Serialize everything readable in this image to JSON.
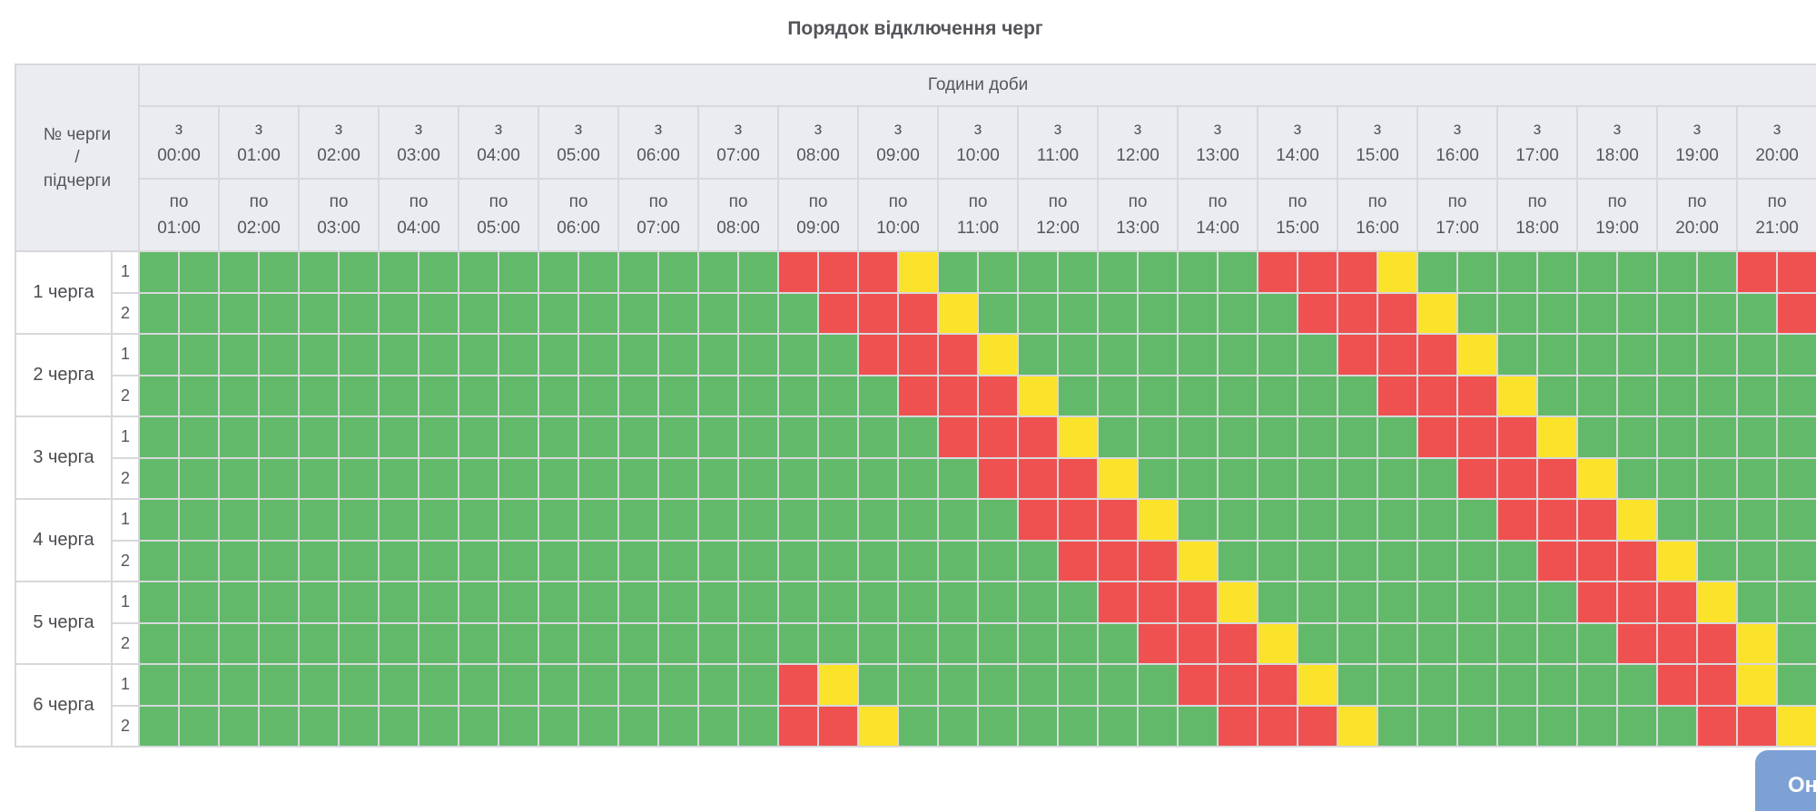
{
  "title": "Порядок відключення черг",
  "colors": {
    "green": "#62b96a",
    "red": "#ef5150",
    "yellow": "#fce32b",
    "header_bg": "#ebecf0",
    "border": "#d7d8db",
    "button_blue": "rgba(97,140,204,0.82)"
  },
  "table": {
    "corner_header_lines": [
      "№ черги",
      "/",
      "підчерги"
    ],
    "hours_header": "Години доби",
    "from_prefix": "з",
    "to_prefix": "по",
    "columns": [
      {
        "from": "00:00",
        "to": "01:00"
      },
      {
        "from": "01:00",
        "to": "02:00"
      },
      {
        "from": "02:00",
        "to": "03:00"
      },
      {
        "from": "03:00",
        "to": "04:00"
      },
      {
        "from": "04:00",
        "to": "05:00"
      },
      {
        "from": "05:00",
        "to": "06:00"
      },
      {
        "from": "06:00",
        "to": "07:00"
      },
      {
        "from": "07:00",
        "to": "08:00"
      },
      {
        "from": "08:00",
        "to": "09:00"
      },
      {
        "from": "09:00",
        "to": "10:00"
      },
      {
        "from": "10:00",
        "to": "11:00"
      },
      {
        "from": "11:00",
        "to": "12:00"
      },
      {
        "from": "12:00",
        "to": "13:00"
      },
      {
        "from": "13:00",
        "to": "14:00"
      },
      {
        "from": "14:00",
        "to": "15:00"
      },
      {
        "from": "15:00",
        "to": "16:00"
      },
      {
        "from": "16:00",
        "to": "17:00"
      },
      {
        "from": "17:00",
        "to": "18:00"
      },
      {
        "from": "18:00",
        "to": "19:00"
      },
      {
        "from": "19:00",
        "to": "20:00"
      },
      {
        "from": "20:00",
        "to": "21:00"
      }
    ]
  },
  "schedule": {
    "slot_minutes": 30,
    "cell_legend": {
      "g": "power on (green)",
      "r": "outage (red)",
      "y": "possible outage (yellow)"
    },
    "rows": [
      {
        "queue": "1 черга",
        "sub": "1",
        "cells": "ggggggggggggggggrrryggggggggrrryggggggggrr"
      },
      {
        "queue": "1 черга",
        "sub": "2",
        "cells": "gggggggggggggggggrrryggggggggrrryggggggggr"
      },
      {
        "queue": "2 черга",
        "sub": "1",
        "cells": "ggggggggggggggggggrrryggggggggrrrygggggggg"
      },
      {
        "queue": "2 черга",
        "sub": "2",
        "cells": "gggggggggggggggggggrrryggggggggrrryggggggg"
      },
      {
        "queue": "3 черга",
        "sub": "1",
        "cells": "ggggggggggggggggggggrrryggggggggrrrygggggg"
      },
      {
        "queue": "3 черга",
        "sub": "2",
        "cells": "gggggggggggggggggggggrrryggggggggrrryggggg"
      },
      {
        "queue": "4 черга",
        "sub": "1",
        "cells": "ggggggggggggggggggggggrrryggggggggrrrygggg"
      },
      {
        "queue": "4 черга",
        "sub": "2",
        "cells": "gggggggggggggggggggggggrrryggggggggrrryggg"
      },
      {
        "queue": "5 черга",
        "sub": "1",
        "cells": "ggggggggggggggggggggggggrrryggggggggrrrygg"
      },
      {
        "queue": "5 черга",
        "sub": "2",
        "cells": "gggggggggggggggggggggggggrrryggggggggrrryg"
      },
      {
        "queue": "6 черга",
        "sub": "1",
        "cells": "ggggggggggggggggryggggggggrrryggggggggrryg"
      },
      {
        "queue": "6 черга",
        "sub": "2",
        "cells": "ggggggggggggggggrryggggggggrrryggggggggrry"
      }
    ]
  },
  "button": {
    "label": "Он"
  }
}
